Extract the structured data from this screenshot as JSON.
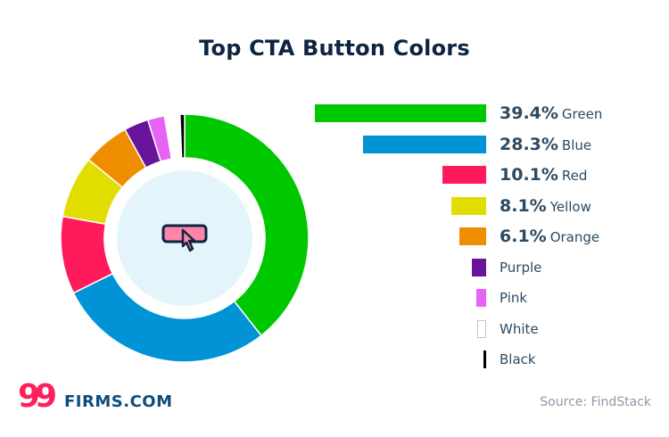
{
  "chart_data": {
    "type": "pie",
    "variant": "donut-with-bar-legend",
    "title": "Top CTA Button Colors",
    "categories": [
      "Green",
      "Blue",
      "Red",
      "Yellow",
      "Orange",
      "Purple",
      "Pink",
      "White",
      "Black"
    ],
    "values": [
      39.4,
      28.3,
      10.1,
      8.1,
      6.1,
      3.2,
      2.2,
      2.0,
      0.6
    ],
    "labels": [
      "39.4%",
      "28.3%",
      "10.1%",
      "8.1%",
      "6.1%",
      "",
      "",
      "",
      ""
    ],
    "colors": [
      "#00c800",
      "#0093d6",
      "#ff1b5b",
      "#e1dd00",
      "#ef8d00",
      "#68149a",
      "#e663f5",
      "#ffffff",
      "#000000"
    ],
    "legend": "right",
    "center_icon": "button-click-cursor-icon"
  },
  "source": "Source: FindStack",
  "logo": {
    "number": "99",
    "text": "FIRMS.COM"
  }
}
